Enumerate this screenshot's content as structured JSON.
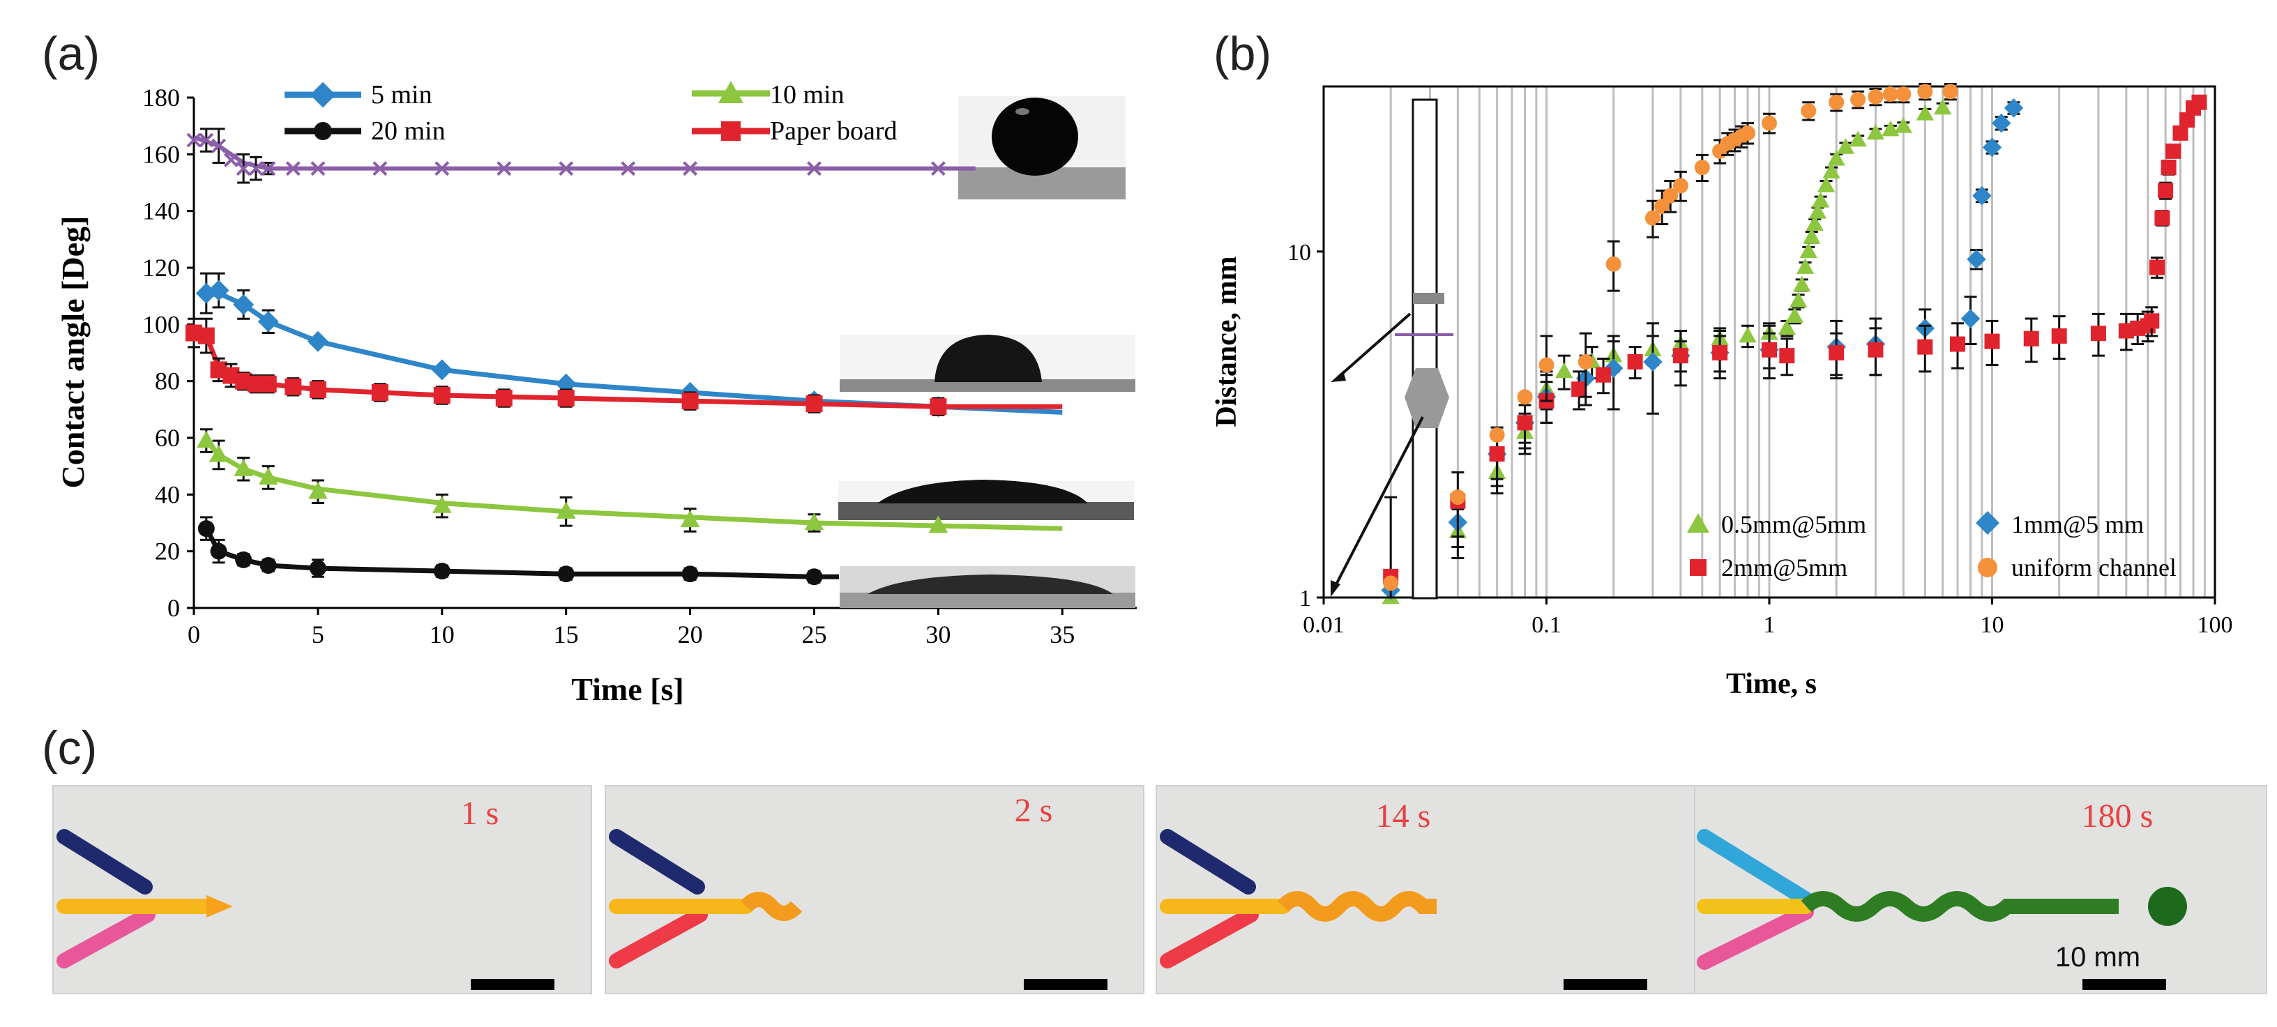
{
  "panel_labels": {
    "a": "(a)",
    "b": "(b)",
    "c": "(c)"
  },
  "colors": {
    "blue": "#2e86c8",
    "black": "#111111",
    "green": "#8dc63f",
    "red": "#e0242e",
    "purple": "#8b5ea8",
    "orange": "#f4913a",
    "grid": "#bdbdbd",
    "scale_text": "#e8403f"
  },
  "chart_data": [
    {
      "id": "a",
      "type": "line",
      "xlabel": "Time [s]",
      "ylabel": "Contact angle [Deg]",
      "xlim": [
        0,
        38
      ],
      "ylim": [
        0,
        180
      ],
      "xticks": [
        0,
        5,
        10,
        15,
        20,
        25,
        30,
        35
      ],
      "yticks": [
        0,
        20,
        40,
        60,
        80,
        100,
        120,
        140,
        160,
        180
      ],
      "legend": [
        "5 min",
        "10 min",
        "20 min",
        "Paper board"
      ],
      "series": [
        {
          "name": "purple",
          "legend": false,
          "marker": "x",
          "color": "#8b5ea8",
          "x": [
            0,
            0.5,
            1,
            1.5,
            2,
            2.5,
            3,
            4,
            5,
            7.5,
            10,
            12.5,
            15,
            17.5,
            20,
            25,
            30
          ],
          "y": [
            165,
            165,
            163,
            158,
            155,
            155,
            155,
            155,
            155,
            155,
            155,
            155,
            155,
            155,
            155,
            155,
            155
          ],
          "err": [
            0,
            4,
            6,
            0,
            5,
            4,
            2,
            0,
            0,
            0,
            0,
            0,
            0,
            0,
            0,
            0,
            0
          ],
          "fit_x": [
            0,
            1,
            2,
            3,
            5,
            10,
            20,
            30,
            31.5
          ],
          "fit_y": [
            166,
            163,
            157,
            155,
            155,
            155,
            155,
            155,
            155
          ]
        },
        {
          "name": "5 min",
          "legend": true,
          "marker": "diamond",
          "color": "#2e86c8",
          "x": [
            0.5,
            1,
            2,
            3,
            5,
            10,
            15,
            20,
            25,
            30
          ],
          "y": [
            111,
            112,
            107,
            101,
            94,
            84,
            79,
            76,
            73,
            71
          ],
          "err": [
            7,
            6,
            5,
            4,
            0,
            0,
            0,
            0,
            0,
            0
          ],
          "fit_x": [
            0.5,
            1,
            2,
            3,
            5,
            7.5,
            10,
            15,
            20,
            25,
            30,
            35
          ],
          "fit_y": [
            110,
            111,
            107,
            101,
            94,
            89,
            84,
            79,
            76,
            73,
            71,
            69
          ]
        },
        {
          "name": "Paper board",
          "legend": true,
          "marker": "square",
          "color": "#e0242e",
          "x": [
            0,
            0.5,
            1,
            1.5,
            2,
            2.5,
            3,
            4,
            5,
            7.5,
            10,
            12.5,
            15,
            20,
            25,
            30
          ],
          "y": [
            97,
            96,
            84,
            82,
            80,
            79,
            79,
            78,
            77,
            76,
            75,
            74,
            74,
            73,
            72,
            71
          ],
          "err": [
            5,
            6,
            4,
            4,
            3,
            3,
            3,
            3,
            3,
            3,
            3,
            3,
            3,
            3,
            3,
            3
          ],
          "fit_x": [
            0,
            0.5,
            1,
            2,
            3,
            5,
            10,
            20,
            30,
            35
          ],
          "fit_y": [
            98,
            96,
            85,
            80,
            79,
            77,
            75,
            73,
            71,
            71
          ]
        },
        {
          "name": "10 min",
          "legend": true,
          "marker": "triangle",
          "color": "#8dc63f",
          "x": [
            0.5,
            1,
            2,
            3,
            5,
            10,
            15,
            20,
            25,
            30
          ],
          "y": [
            59,
            54,
            49,
            46,
            41,
            36,
            34,
            31,
            30,
            29
          ],
          "err": [
            4,
            5,
            4,
            4,
            4,
            4,
            5,
            4,
            3,
            0
          ],
          "fit_x": [
            0.5,
            1,
            2,
            3,
            5,
            10,
            15,
            20,
            25,
            30,
            35
          ],
          "fit_y": [
            59,
            54,
            49,
            46,
            42,
            37,
            34,
            32,
            30,
            29,
            28
          ]
        },
        {
          "name": "20 min",
          "legend": true,
          "marker": "circle",
          "color": "#111111",
          "x": [
            0.5,
            1,
            2,
            3,
            5,
            10,
            15,
            20,
            25
          ],
          "y": [
            28,
            20,
            17,
            15,
            14,
            13,
            12,
            12,
            11
          ],
          "err": [
            4,
            4,
            2,
            2,
            3,
            2,
            2,
            2,
            2
          ],
          "fit_x": [
            0.5,
            1,
            2,
            3,
            5,
            10,
            15,
            20,
            25,
            26
          ],
          "fit_y": [
            28,
            20,
            17,
            15,
            14,
            13,
            12,
            12,
            11,
            11
          ]
        }
      ]
    },
    {
      "id": "b",
      "type": "scatter",
      "xscale": "log",
      "yscale": "log",
      "xlabel": "Time, s",
      "ylabel": "Distance, mm",
      "xlim": [
        0.01,
        100
      ],
      "ylim": [
        1,
        30
      ],
      "xticks": [
        "0.01",
        "0.1",
        "1",
        "10",
        "100"
      ],
      "yticks": [
        "1",
        "10"
      ],
      "legend": [
        "0.5mm@5mm",
        "1mm@5 mm",
        "2mm@5mm",
        "uniform channel"
      ],
      "series": [
        {
          "name": "0.5mm@5mm",
          "marker": "triangle",
          "color": "#8dc63f",
          "x": [
            0.02,
            0.04,
            0.06,
            0.08,
            0.1,
            0.12,
            0.16,
            0.2,
            0.3,
            0.4,
            0.6,
            0.8,
            1.0,
            1.2,
            1.3,
            1.35,
            1.4,
            1.45,
            1.5,
            1.55,
            1.6,
            1.65,
            1.7,
            1.8,
            1.9,
            2.0,
            2.2,
            2.5,
            3.0,
            3.5,
            4.0,
            5.0,
            6.0
          ],
          "y": [
            1.0,
            1.55,
            2.3,
            3.0,
            4.0,
            4.5,
            4.8,
            5.0,
            5.2,
            5.4,
            5.6,
            5.7,
            5.8,
            6.0,
            6.5,
            7.2,
            8.0,
            9.0,
            10.0,
            11.0,
            12.0,
            13.0,
            14.0,
            15.5,
            17.0,
            18.5,
            20.0,
            21.0,
            22.0,
            22.5,
            23.0,
            25.0,
            26.0
          ],
          "err": [
            0,
            0.25,
            0.3,
            0.4,
            0.5,
            0.5,
            0.5,
            0.5,
            0.5,
            0.5,
            0.4,
            0.4,
            0.4,
            0.3,
            0.3,
            0.3,
            0.3,
            0.3,
            0.3,
            0.4,
            0.4,
            0.4,
            0.4,
            0.5,
            0.5,
            0.6,
            0.6,
            0.6,
            0.6,
            0.6,
            0.6,
            0.8,
            0.8
          ]
        },
        {
          "name": "1mm@5 mm",
          "marker": "diamond",
          "color": "#2e86c8",
          "x": [
            0.02,
            0.04,
            0.06,
            0.08,
            0.1,
            0.15,
            0.2,
            0.3,
            0.4,
            0.6,
            1.0,
            2.0,
            3.0,
            5.0,
            8.0,
            8.5,
            9.0,
            10.0,
            11.0,
            12.5
          ],
          "y": [
            1.05,
            1.65,
            2.6,
            3.2,
            3.8,
            4.3,
            4.6,
            4.8,
            5.0,
            5.1,
            5.2,
            5.3,
            5.4,
            6.0,
            6.4,
            9.5,
            14.5,
            20.0,
            23.5,
            26.0
          ],
          "err": [
            0,
            0.25,
            0.4,
            0.5,
            0.6,
            0.7,
            1.1,
            1.4,
            0.9,
            0.8,
            0.9,
            1.0,
            1.0,
            0.8,
            1.0,
            0.6,
            0.6,
            0.8,
            1.0,
            1.0
          ]
        },
        {
          "name": "2mm@5mm",
          "marker": "square",
          "color": "#e0242e",
          "x": [
            0.02,
            0.04,
            0.06,
            0.08,
            0.1,
            0.14,
            0.18,
            0.25,
            0.4,
            0.6,
            1.0,
            1.2,
            2.0,
            3.0,
            5.0,
            7.0,
            10.0,
            15.0,
            20.0,
            30.0,
            40.0,
            45.0,
            50.0,
            52.0,
            55.0,
            58.0,
            60.0,
            62.0,
            65.0,
            70.0,
            75.0,
            80.0,
            85.0
          ],
          "y": [
            1.15,
            1.9,
            2.6,
            3.2,
            3.7,
            4.0,
            4.4,
            4.8,
            5.0,
            5.1,
            5.2,
            5.0,
            5.1,
            5.2,
            5.3,
            5.4,
            5.5,
            5.6,
            5.7,
            5.8,
            5.9,
            6.0,
            6.1,
            6.3,
            9.0,
            12.5,
            15.0,
            17.5,
            19.5,
            22.0,
            24.0,
            26.0,
            27.0
          ],
          "err": [
            0.8,
            0.4,
            0.5,
            0.4,
            0.5,
            0.5,
            0.5,
            0.5,
            0.5,
            0.6,
            0.6,
            0.6,
            0.7,
            0.8,
            0.8,
            0.8,
            0.8,
            0.8,
            0.8,
            0.8,
            0.7,
            0.6,
            0.6,
            0.6,
            0.6,
            0.6,
            0.8,
            0.8,
            0.8,
            0.8,
            0.8,
            0.8,
            0.8
          ]
        },
        {
          "name": "uniform channel",
          "marker": "circle",
          "color": "#f4913a",
          "x": [
            0.02,
            0.04,
            0.06,
            0.08,
            0.1,
            0.15,
            0.2,
            0.3,
            0.33,
            0.36,
            0.4,
            0.5,
            0.6,
            0.65,
            0.7,
            0.75,
            0.8,
            1.0,
            1.5,
            2.0,
            2.5,
            3.0,
            3.5,
            4.0,
            5.0,
            6.5
          ],
          "y": [
            1.1,
            1.95,
            2.95,
            3.8,
            4.7,
            4.8,
            9.2,
            12.5,
            13.5,
            14.5,
            15.5,
            17.5,
            19.5,
            20.5,
            21.0,
            21.5,
            22.0,
            23.5,
            25.5,
            27.0,
            27.5,
            28.0,
            28.5,
            28.5,
            29.0,
            29.0
          ],
          "err": [
            0,
            0,
            0,
            0,
            1.0,
            1.0,
            1.5,
            1.5,
            1.5,
            1.5,
            1.5,
            1.5,
            1.5,
            1.5,
            1.5,
            1.5,
            1.5,
            1.5,
            1.5,
            1.5,
            1.5,
            1.5,
            1.5,
            1.5,
            1.5,
            1.5
          ]
        }
      ]
    }
  ],
  "panel_c": [
    {
      "time": "1 s",
      "scale": ""
    },
    {
      "time": "2 s",
      "scale": ""
    },
    {
      "time": "14 s",
      "scale": ""
    },
    {
      "time": "180 s",
      "scale": "10 mm"
    }
  ]
}
